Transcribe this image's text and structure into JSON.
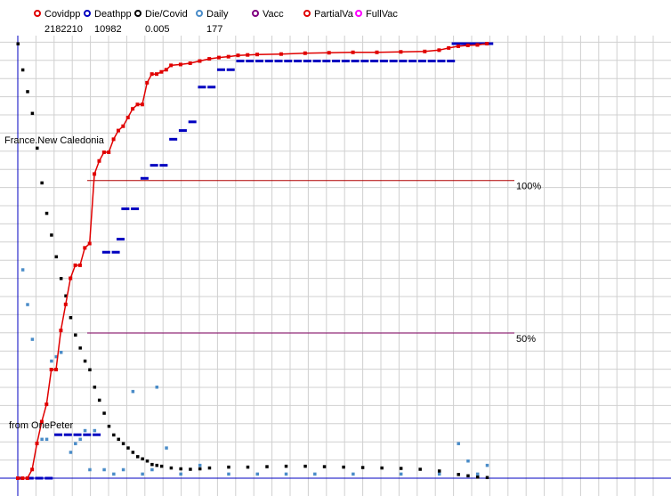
{
  "legend": [
    {
      "label": "Covidpp",
      "value": "2182210",
      "color": "#e00000"
    },
    {
      "label": "Deathpp",
      "value": "10982",
      "color": "#0000c0"
    },
    {
      "label": "Die/Covid",
      "value": "0.005",
      "color": "#000000"
    },
    {
      "label": "Daily",
      "value": "177",
      "color": "#4a8cc8"
    },
    {
      "label": "Vacc",
      "value": "",
      "color": "#800080"
    },
    {
      "label": "PartialVa",
      "value": "",
      "color": "#e00000"
    },
    {
      "label": "FullVac",
      "value": "",
      "color": "#ff00ff"
    }
  ],
  "annotations": {
    "region": "France.New Caledonia",
    "source": "from OnePeter"
  },
  "chart_data": {
    "type": "scatter",
    "grid": true,
    "xlim": [
      0,
      100
    ],
    "ylim": [
      0,
      100
    ],
    "reference_lines": [
      {
        "label": "100%",
        "y": 68.5,
        "x_start": 14.5,
        "x_end": 100,
        "color": "#b00000"
      },
      {
        "label": "50%",
        "y": 33.4,
        "x_start": 14.5,
        "x_end": 100,
        "color": "#800060"
      }
    ],
    "series": [
      {
        "name": "Covidpp",
        "style": "line-markers",
        "color": "#e00000",
        "x": [
          0,
          1,
          2,
          3,
          4,
          5,
          6,
          7,
          8,
          9,
          10,
          11,
          12,
          13,
          14,
          15,
          16,
          17,
          18,
          19,
          20,
          21,
          22,
          23,
          24,
          25,
          26,
          27,
          28,
          29,
          30,
          31,
          32,
          34,
          36,
          38,
          40,
          42,
          44,
          46,
          48,
          50,
          55,
          60,
          65,
          70,
          75,
          80,
          85,
          88,
          90,
          92,
          94,
          96,
          98
        ],
        "y": [
          0,
          0,
          0,
          2,
          8,
          13,
          17,
          25,
          25,
          34,
          40,
          46,
          49,
          49,
          53,
          54,
          70,
          73,
          75,
          75,
          78,
          80,
          81,
          83,
          85,
          86,
          86,
          91,
          93,
          93,
          93.5,
          94,
          95,
          95.2,
          95.5,
          96,
          96.5,
          96.8,
          97,
          97.3,
          97.4,
          97.5,
          97.6,
          97.8,
          97.9,
          98,
          98,
          98.1,
          98.2,
          98.5,
          99,
          99.4,
          99.6,
          99.7,
          100
        ]
      },
      {
        "name": "Deathpp",
        "style": "markers",
        "color": "#0000c0",
        "x": [
          0,
          2,
          4,
          6,
          8,
          10,
          12,
          14,
          16,
          18,
          20,
          21,
          22,
          24,
          26,
          28,
          30,
          32,
          34,
          36,
          38,
          40,
          42,
          44,
          46,
          48,
          50,
          52,
          54,
          56,
          58,
          60,
          62,
          64,
          66,
          68,
          70,
          72,
          74,
          76,
          78,
          80,
          82,
          84,
          86,
          88,
          90,
          91,
          92,
          93,
          94,
          95,
          96,
          97,
          98
        ],
        "y": [
          0,
          0,
          0,
          0,
          10,
          10,
          10,
          10,
          10,
          52,
          52,
          55,
          62,
          62,
          69,
          72,
          72,
          78,
          80,
          82,
          90,
          90,
          94,
          94,
          96,
          96,
          96,
          96,
          96,
          96,
          96,
          96,
          96,
          96,
          96,
          96,
          96,
          96,
          96,
          96,
          96,
          96,
          96,
          96,
          96,
          96,
          96,
          100,
          100,
          100,
          100,
          100,
          100,
          100,
          100
        ]
      },
      {
        "name": "Die/Covid",
        "style": "markers",
        "color": "#000000",
        "x": [
          0,
          1,
          2,
          3,
          4,
          5,
          6,
          7,
          8,
          9,
          10,
          11,
          12,
          13,
          14,
          15,
          16,
          17,
          18,
          19,
          20,
          21,
          22,
          23,
          24,
          25,
          26,
          27,
          28,
          29,
          30,
          32,
          34,
          36,
          38,
          40,
          44,
          48,
          52,
          56,
          60,
          64,
          68,
          72,
          76,
          80,
          84,
          88,
          92,
          94,
          96,
          98
        ],
        "y": [
          100,
          94,
          89,
          84,
          76,
          68,
          61,
          56,
          51,
          46,
          42,
          37,
          33,
          30,
          27,
          25,
          21,
          18,
          15,
          12,
          10,
          9,
          8,
          7,
          6,
          5,
          4.5,
          4,
          3.2,
          3,
          2.8,
          2.4,
          2.2,
          2.1,
          2.2,
          2.4,
          2.6,
          2.6,
          2.7,
          2.8,
          2.8,
          2.7,
          2.6,
          2.5,
          2.4,
          2.3,
          2.1,
          1.7,
          0.9,
          0.6,
          0.3,
          0.2
        ]
      },
      {
        "name": "Daily",
        "style": "markers",
        "color": "#4a8cc8",
        "x": [
          1,
          2,
          3,
          5,
          6,
          7,
          8,
          9,
          11,
          12,
          13,
          14,
          15,
          16,
          18,
          20,
          22,
          24,
          26,
          28,
          29,
          31,
          34,
          38,
          44,
          50,
          56,
          62,
          70,
          80,
          88,
          92,
          94,
          96,
          98
        ],
        "y": [
          48,
          40,
          32,
          9,
          9,
          27,
          28,
          29,
          6,
          8,
          9,
          11,
          2,
          11,
          2,
          1,
          2,
          20,
          1,
          2,
          21,
          7,
          1,
          3,
          1,
          1,
          1,
          1,
          1,
          1,
          1,
          8,
          4,
          1,
          3
        ]
      }
    ]
  }
}
